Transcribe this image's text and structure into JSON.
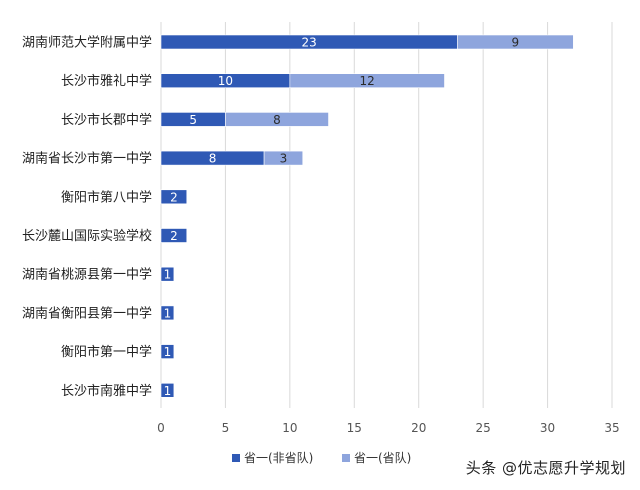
{
  "chart_data": {
    "type": "bar",
    "orientation": "horizontal",
    "stacked": true,
    "categories": [
      "湖南师范大学附属中学",
      "长沙市雅礼中学",
      "长沙市长郡中学",
      "湖南省长沙市第一中学",
      "衡阳市第八中学",
      "长沙麓山国际实验学校",
      "湖南省桃源县第一中学",
      "湖南省衡阳县第一中学",
      "衡阳市第一中学",
      "长沙市南雅中学"
    ],
    "series": [
      {
        "name": "省一(非省队)",
        "color": "#2f59b5",
        "values": [
          23,
          10,
          5,
          8,
          2,
          2,
          1,
          1,
          1,
          1
        ]
      },
      {
        "name": "省一(省队)",
        "color": "#8ea5dd",
        "values": [
          9,
          12,
          8,
          3,
          0,
          0,
          0,
          0,
          0,
          0
        ]
      }
    ],
    "xlim": [
      0,
      35
    ],
    "xticks": [
      0,
      5,
      10,
      15,
      20,
      25,
      30,
      35
    ],
    "grid": true,
    "legend_position": "bottom",
    "title": "",
    "xlabel": "",
    "ylabel": ""
  },
  "watermark_text": "头条 @优志愿升学规划"
}
